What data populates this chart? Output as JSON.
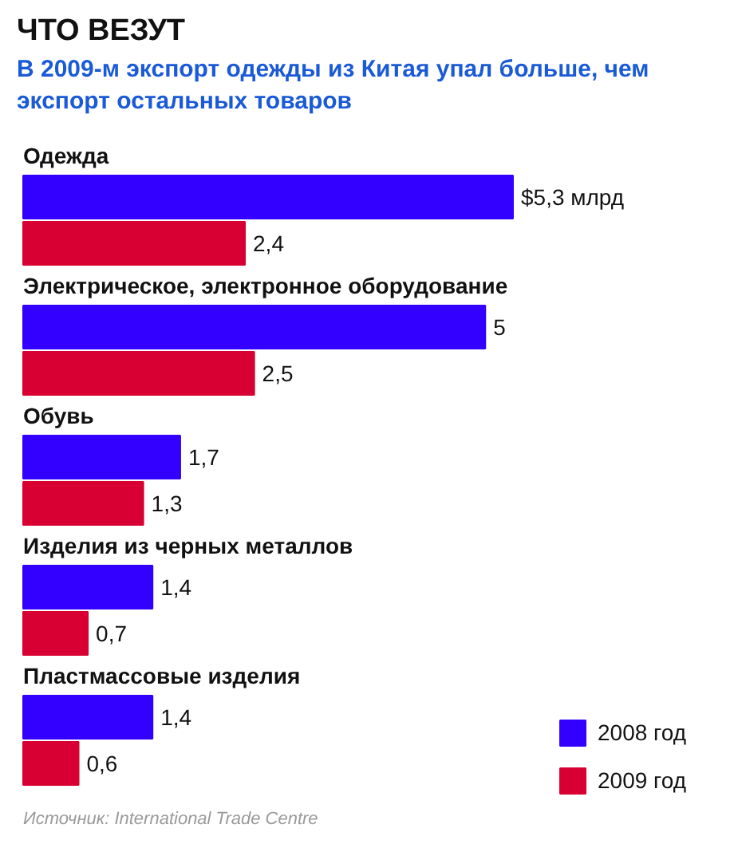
{
  "chart_data": {
    "type": "bar",
    "orientation": "horizontal",
    "title": "ЧТО ВЕЗУТ",
    "subtitle": "В 2009-м экспорт одежды из Китая упал больше, чем экспорт остальных товаров",
    "categories": [
      "Одежда",
      "Электрическое, электронное оборудование",
      "Обувь",
      "Изделия из черных металлов",
      "Пластмассовые изделия"
    ],
    "series": [
      {
        "name": "2008 год",
        "color": "#3300ff",
        "values": [
          5.3,
          5,
          1.7,
          1.4,
          1.4
        ],
        "value_labels": [
          "$5,3 млрд",
          "5",
          "1,7",
          "1,4",
          "1,4"
        ]
      },
      {
        "name": "2009 год",
        "color": "#d80032",
        "values": [
          2.4,
          2.5,
          1.3,
          0.7,
          0.6
        ],
        "value_labels": [
          "2,4",
          "2,5",
          "1,3",
          "0,7",
          "0,6"
        ]
      }
    ],
    "legend": "bottom right",
    "annotations": [
      "Источник: International Trade Centre"
    ]
  }
}
